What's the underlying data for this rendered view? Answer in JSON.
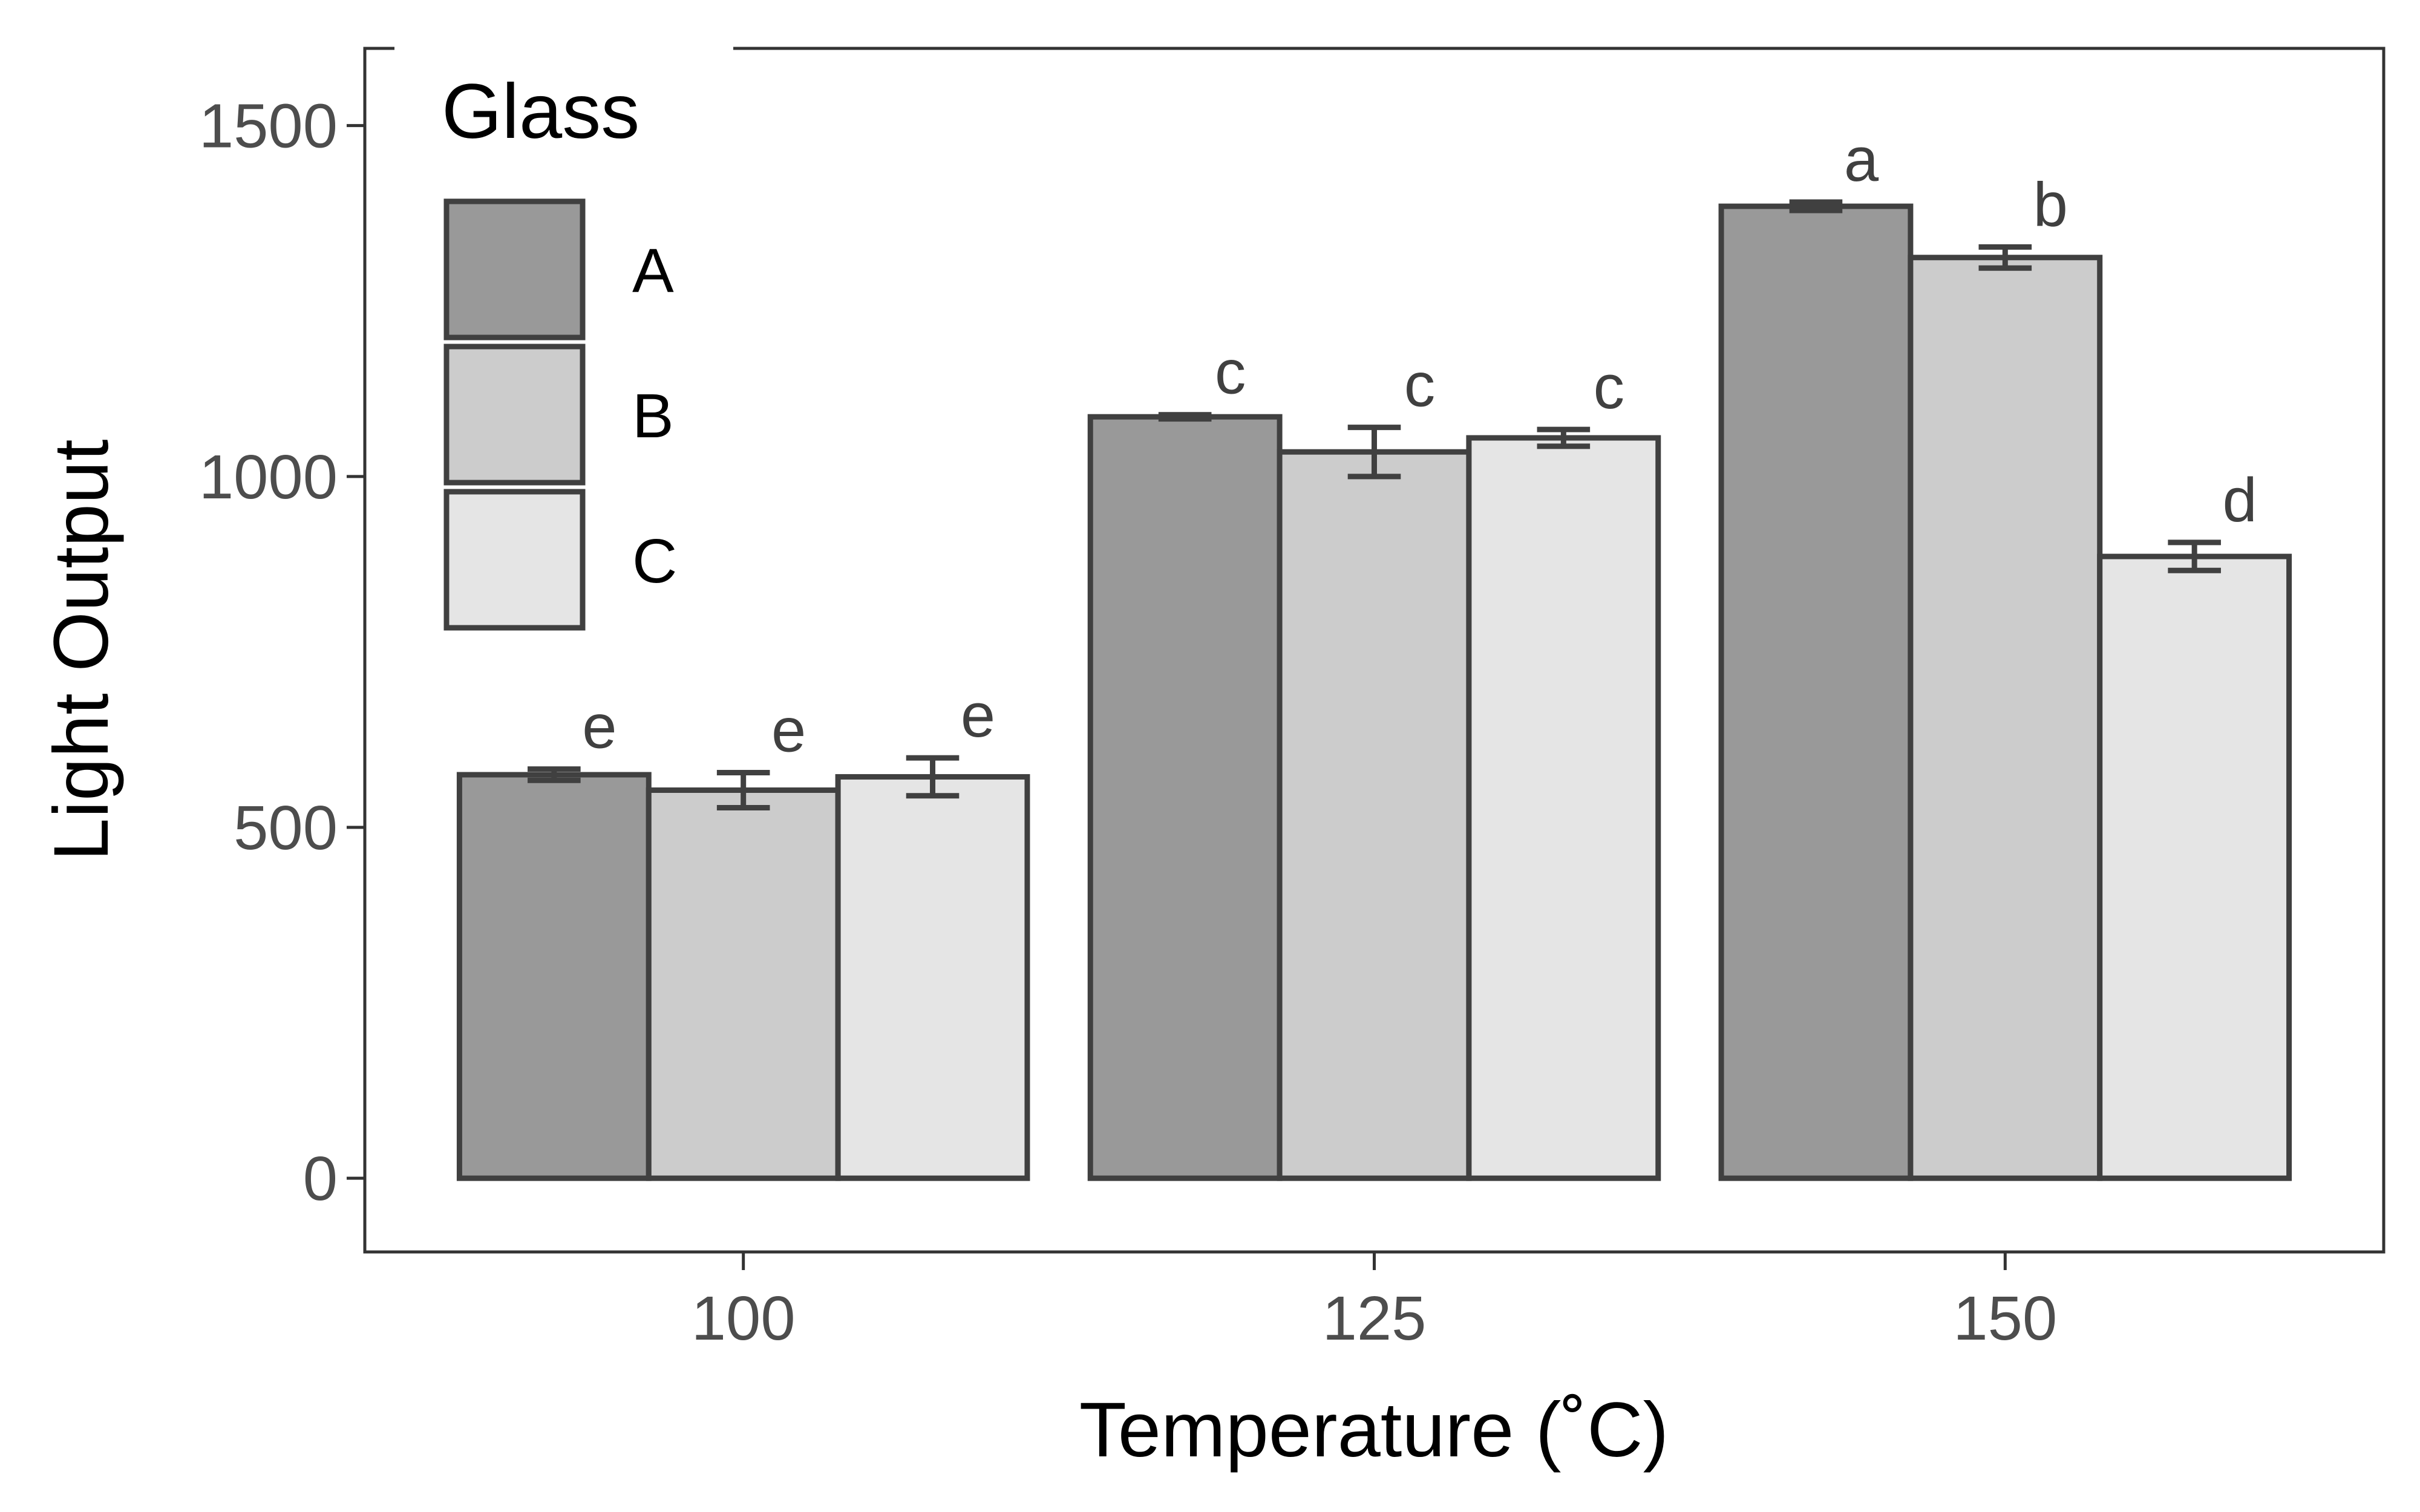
{
  "chart_data": {
    "type": "bar",
    "xlabel": "Temperature (˚C)",
    "ylabel": "Light Output",
    "categories": [
      "100",
      "125",
      "150"
    ],
    "ylim": [
      -105,
      1610
    ],
    "yticks": [
      0,
      500,
      1000,
      1500
    ],
    "grid": false,
    "legend_title": "Glass",
    "legend_position": "top-left",
    "series": [
      {
        "name": "A",
        "color": "#999999",
        "values": [
          575,
          1085,
          1385
        ],
        "errors": [
          8,
          3,
          6
        ],
        "labels": [
          "e",
          "c",
          "a"
        ]
      },
      {
        "name": "B",
        "color": "#cccccc",
        "values": [
          553,
          1035,
          1312
        ],
        "errors": [
          25,
          35,
          15
        ],
        "labels": [
          "e",
          "c",
          "b"
        ]
      },
      {
        "name": "C",
        "color": "#e5e5e5",
        "values": [
          572,
          1055,
          886
        ],
        "errors": [
          27,
          12,
          20
        ],
        "labels": [
          "e",
          "c",
          "d"
        ]
      }
    ]
  }
}
